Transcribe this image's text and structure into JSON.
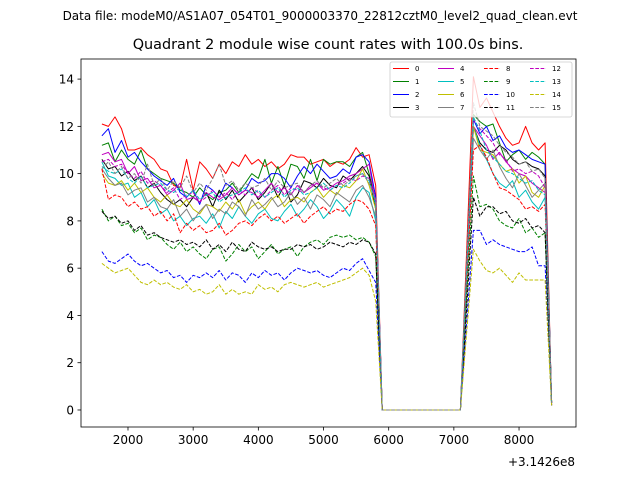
{
  "chart_data": {
    "type": "line",
    "suptitle": "Data file: modeM0/AS1A07_054T01_9000003370_22812cztM0_level2_quad_clean.evt",
    "title": "Quadrant 2 module wise count rates with 100.0s bins.",
    "xlabel": "",
    "ylabel": "",
    "x_offset_text": "+3.1426e8",
    "xlim": [
      1279,
      8874
    ],
    "ylim": [
      -0.72,
      14.85
    ],
    "xticks": [
      2000,
      3000,
      4000,
      5000,
      6000,
      7000,
      8000
    ],
    "xtick_labels": [
      "2000",
      "3000",
      "4000",
      "5000",
      "6000",
      "7000",
      "8000"
    ],
    "yticks": [
      0,
      2,
      4,
      6,
      8,
      10,
      12,
      14
    ],
    "ytick_labels": [
      "0",
      "2",
      "4",
      "6",
      "8",
      "10",
      "12",
      "14"
    ],
    "grid": false,
    "legend_position": "top-right",
    "bin_width": 100,
    "x_segments": {
      "pre_start": 1600,
      "drop_x": 5800,
      "zero_start": 5900,
      "zero_end": 7100,
      "rise_x": 7200,
      "post_start": 7300,
      "end_x": 8500
    },
    "series": [
      {
        "name": "0",
        "color": "#ff0000",
        "dashed": false,
        "pre": [
          12.1,
          12.0,
          12.4,
          11.9,
          11.0,
          11.0,
          11.1,
          10.8,
          10.6,
          10.2,
          10.1,
          9.5,
          9.4,
          10.6,
          9.3,
          10.5,
          10.2,
          9.8,
          10.4,
          10.0,
          10.5,
          10.3,
          10.8,
          10.4,
          10.6,
          10.3,
          10.5,
          10.2,
          10.4,
          10.8,
          10.7,
          10.7,
          10.4,
          10.5,
          10.6,
          10.3,
          10.5,
          10.4,
          10.6,
          11.1,
          10.7,
          10.8
        ],
        "drop": 9.5,
        "rise": 7.0,
        "post": [
          14.1,
          12.8,
          13.2,
          12.6,
          12.0,
          11.5,
          11.2,
          11.3,
          12.0,
          11.3,
          11.0,
          11.3
        ],
        "end": 0.2
      },
      {
        "name": "1",
        "color": "#008000",
        "dashed": false,
        "pre": [
          11.2,
          11.3,
          10.5,
          11.0,
          10.6,
          10.4,
          11.0,
          10.2,
          10.0,
          9.8,
          9.7,
          9.6,
          9.3,
          9.2,
          9.0,
          9.4,
          9.1,
          8.9,
          9.2,
          9.3,
          9.6,
          9.2,
          9.6,
          10.0,
          9.8,
          10.6,
          9.6,
          10.3,
          9.5,
          10.4,
          10.3,
          9.8,
          10.6,
          9.7,
          10.6,
          10.4,
          10.5,
          10.5,
          10.3,
          10.7,
          10.9,
          10.0
        ],
        "drop": 8.8,
        "rise": 6.3,
        "post": [
          12.5,
          12.2,
          12.0,
          12.1,
          11.3,
          10.5,
          10.8,
          11.0,
          10.6,
          10.9,
          10.7,
          10.4
        ],
        "end": 0.3
      },
      {
        "name": "2",
        "color": "#0000ff",
        "dashed": false,
        "pre": [
          11.6,
          11.9,
          10.9,
          11.4,
          10.7,
          10.9,
          10.5,
          10.2,
          9.9,
          9.7,
          9.5,
          9.8,
          9.2,
          9.0,
          9.3,
          8.7,
          9.5,
          9.3,
          9.0,
          9.6,
          9.4,
          9.1,
          9.3,
          9.8,
          9.6,
          9.7,
          10.0,
          10.0,
          9.8,
          9.4,
          9.9,
          10.3,
          10.0,
          10.4,
          10.1,
          9.8,
          9.9,
          10.2,
          10.0,
          10.7,
          10.8,
          10.5
        ],
        "drop": 9.0,
        "rise": 6.2,
        "post": [
          12.3,
          11.7,
          12.0,
          11.4,
          11.6,
          11.1,
          10.9,
          11.0,
          10.8,
          10.6,
          10.5,
          10.4
        ],
        "end": 0.3
      },
      {
        "name": "3",
        "color": "#000000",
        "dashed": false,
        "pre": [
          10.6,
          10.2,
          10.3,
          9.9,
          10.1,
          9.7,
          9.9,
          9.4,
          9.6,
          9.2,
          8.9,
          8.7,
          8.9,
          8.6,
          9.0,
          8.8,
          9.2,
          8.6,
          9.3,
          8.9,
          9.3,
          8.8,
          9.1,
          9.4,
          8.9,
          9.2,
          9.6,
          9.0,
          9.5,
          8.8,
          9.1,
          9.7,
          9.6,
          9.4,
          9.8,
          9.5,
          9.4,
          9.9,
          9.7,
          10.0,
          10.3,
          9.9
        ],
        "drop": 8.5,
        "rise": 6.0,
        "post": [
          12.0,
          11.3,
          11.0,
          10.9,
          11.2,
          11.0,
          10.6,
          10.4,
          10.5,
          10.3,
          10.2,
          9.9
        ],
        "end": 0.3
      },
      {
        "name": "4",
        "color": "#bf00bf",
        "dashed": false,
        "pre": [
          10.8,
          10.9,
          10.5,
          10.6,
          10.0,
          10.3,
          9.7,
          9.8,
          9.4,
          9.5,
          9.1,
          9.3,
          9.6,
          8.9,
          9.0,
          8.8,
          9.2,
          9.0,
          8.9,
          9.1,
          9.4,
          9.1,
          9.3,
          9.2,
          9.0,
          9.3,
          9.6,
          9.2,
          9.4,
          9.1,
          9.5,
          9.2,
          9.4,
          9.6,
          9.3,
          9.4,
          9.6,
          9.7,
          9.9,
          10.0,
          10.2,
          10.4
        ],
        "drop": 8.7,
        "rise": 6.0,
        "post": [
          12.0,
          11.6,
          11.2,
          10.6,
          10.9,
          10.5,
          10.2,
          10.0,
          9.9,
          9.6,
          9.4,
          9.2
        ],
        "end": 0.3
      },
      {
        "name": "5",
        "color": "#00bfbf",
        "dashed": false,
        "pre": [
          10.5,
          9.9,
          9.8,
          9.5,
          9.6,
          9.0,
          9.2,
          8.6,
          8.9,
          8.3,
          8.5,
          8.0,
          8.2,
          7.8,
          8.1,
          8.2,
          7.9,
          8.3,
          7.7,
          8.4,
          8.1,
          8.6,
          8.2,
          7.9,
          8.3,
          8.5,
          8.1,
          8.0,
          8.4,
          8.7,
          8.2,
          8.5,
          8.9,
          8.6,
          8.1,
          8.4,
          8.9,
          8.6,
          8.2,
          9.0,
          9.4,
          9.2
        ],
        "drop": 8.0,
        "rise": 6.0,
        "post": [
          12.0,
          11.2,
          10.6,
          10.0,
          9.6,
          9.4,
          9.7,
          9.0,
          9.3,
          8.8,
          8.5,
          9.0
        ],
        "end": 0.3
      },
      {
        "name": "6",
        "color": "#bfbf00",
        "dashed": false,
        "pre": [
          10.0,
          9.6,
          9.5,
          9.7,
          9.3,
          9.6,
          9.2,
          9.4,
          9.0,
          8.8,
          9.1,
          8.7,
          8.6,
          8.9,
          8.5,
          8.3,
          8.7,
          8.6,
          8.4,
          8.8,
          8.5,
          8.9,
          8.3,
          8.6,
          8.8,
          8.5,
          8.9,
          9.1,
          8.6,
          8.9,
          9.0,
          8.8,
          9.2,
          9.4,
          9.0,
          9.3,
          9.1,
          9.5,
          9.4,
          9.7,
          10.2,
          9.5
        ],
        "drop": 8.5,
        "rise": 6.0,
        "post": [
          12.0,
          11.0,
          10.9,
          10.8,
          10.4,
          10.1,
          10.2,
          9.6,
          9.9,
          9.2,
          9.0,
          9.5
        ],
        "end": 0.3
      },
      {
        "name": "7",
        "color": "#808080",
        "dashed": false,
        "pre": [
          10.2,
          9.8,
          9.5,
          9.6,
          9.1,
          9.3,
          9.4,
          8.8,
          9.0,
          8.6,
          8.5,
          8.9,
          8.2,
          8.5,
          8.0,
          8.4,
          8.7,
          8.1,
          8.5,
          8.3,
          8.8,
          8.6,
          8.2,
          8.9,
          8.5,
          8.7,
          9.0,
          8.6,
          8.8,
          9.2,
          8.7,
          9.0,
          8.5,
          9.1,
          8.9,
          8.6,
          9.2,
          9.0,
          8.8,
          9.3,
          9.5,
          9.0
        ],
        "drop": 8.2,
        "rise": 5.7,
        "post": [
          11.5,
          11.0,
          10.6,
          11.0,
          10.3,
          9.8,
          9.4,
          10.0,
          9.5,
          9.0,
          9.3,
          9.6
        ],
        "end": 0.3
      },
      {
        "name": "8",
        "color": "#ff0000",
        "dashed": true,
        "pre": [
          10.2,
          8.9,
          9.1,
          9.0,
          8.6,
          8.8,
          8.5,
          8.6,
          8.2,
          8.4,
          8.0,
          8.3,
          7.5,
          7.9,
          7.6,
          7.8,
          7.5,
          7.6,
          7.9,
          7.4,
          7.6,
          7.9,
          8.0,
          7.8,
          8.1,
          8.3,
          8.0,
          8.2,
          7.9,
          8.1,
          8.3,
          7.9,
          8.2,
          8.4,
          8.6,
          8.3,
          8.5,
          8.4,
          8.7,
          8.9,
          8.8,
          8.5
        ],
        "drop": 7.8,
        "rise": 5.5,
        "post": [
          11.0,
          11.2,
          10.7,
          10.0,
          9.4,
          9.3,
          9.1,
          8.9,
          8.5,
          8.6,
          8.4,
          8.7
        ],
        "end": 0.3
      },
      {
        "name": "9",
        "color": "#008000",
        "dashed": true,
        "pre": [
          8.5,
          8.0,
          8.2,
          7.8,
          7.9,
          7.5,
          7.7,
          7.2,
          7.4,
          7.3,
          7.0,
          6.8,
          7.1,
          6.7,
          6.9,
          6.6,
          6.4,
          6.8,
          6.9,
          6.3,
          6.6,
          7.0,
          6.7,
          6.9,
          6.4,
          6.7,
          7.0,
          6.6,
          6.8,
          6.9,
          6.5,
          6.9,
          7.1,
          7.2,
          7.0,
          7.3,
          7.4,
          7.3,
          7.4,
          7.2,
          7.3,
          7.1
        ],
        "drop": 6.5,
        "rise": 5.0,
        "post": [
          9.9,
          8.6,
          8.7,
          8.5,
          8.0,
          7.8,
          7.7,
          8.1,
          7.5,
          7.7,
          7.3,
          7.5
        ],
        "end": 0.2
      },
      {
        "name": "10",
        "color": "#0000ff",
        "dashed": true,
        "pre": [
          6.7,
          6.3,
          6.2,
          6.4,
          6.6,
          6.3,
          6.1,
          6.2,
          6.0,
          5.8,
          5.9,
          5.6,
          5.7,
          5.4,
          5.7,
          5.6,
          5.8,
          5.6,
          5.9,
          5.5,
          5.8,
          5.7,
          5.4,
          5.8,
          5.6,
          5.9,
          5.7,
          5.8,
          5.5,
          5.8,
          6.0,
          5.9,
          5.8,
          5.9,
          5.7,
          5.6,
          5.8,
          6.0,
          5.9,
          6.2,
          6.4,
          5.9
        ],
        "drop": 5.4,
        "rise": 3.8,
        "post": [
          7.6,
          7.6,
          7.0,
          7.2,
          7.0,
          6.9,
          6.8,
          6.7,
          6.7,
          6.9,
          6.1,
          6.1
        ],
        "end": 0.2
      },
      {
        "name": "11",
        "color": "#000000",
        "dashed": true,
        "pre": [
          8.4,
          8.1,
          8.2,
          7.9,
          8.0,
          7.6,
          7.8,
          7.4,
          7.5,
          7.3,
          7.2,
          7.1,
          7.2,
          7.0,
          7.1,
          6.9,
          7.2,
          6.8,
          7.0,
          6.7,
          7.1,
          6.8,
          6.7,
          7.1,
          6.9,
          6.8,
          6.9,
          6.7,
          6.8,
          6.8,
          7.0,
          6.9,
          7.0,
          6.8,
          6.9,
          7.1,
          7.0,
          6.9,
          7.1,
          7.0,
          7.2,
          7.1
        ],
        "drop": 6.6,
        "rise": 4.5,
        "post": [
          9.0,
          8.2,
          8.6,
          8.6,
          8.3,
          8.4,
          8.0,
          7.9,
          8.1,
          7.7,
          7.8,
          7.5
        ],
        "end": 0.2
      },
      {
        "name": "12",
        "color": "#bf00bf",
        "dashed": true,
        "pre": [
          10.5,
          10.6,
          10.3,
          10.4,
          10.0,
          9.8,
          10.1,
          9.6,
          9.7,
          9.5,
          9.2,
          9.4,
          8.9,
          9.1,
          9.2,
          8.8,
          9.0,
          9.3,
          9.0,
          9.2,
          8.9,
          9.3,
          9.1,
          9.4,
          9.2,
          9.0,
          9.3,
          9.5,
          9.1,
          9.4,
          9.3,
          9.2,
          9.5,
          9.6,
          9.4,
          9.3,
          9.5,
          9.6,
          9.8,
          9.7,
          9.9,
          9.8
        ],
        "drop": 8.8,
        "rise": 6.1,
        "post": [
          12.3,
          11.9,
          11.6,
          11.3,
          10.8,
          10.6,
          10.1,
          10.2,
          10.0,
          10.1,
          9.9,
          9.4
        ],
        "end": 0.3
      },
      {
        "name": "13",
        "color": "#00bfbf",
        "dashed": true,
        "pre": [
          10.3,
          10.1,
          10.0,
          10.2,
          9.8,
          9.6,
          9.9,
          9.4,
          9.5,
          9.6,
          9.3,
          9.2,
          9.4,
          9.0,
          9.3,
          8.9,
          9.1,
          9.2,
          8.8,
          9.0,
          9.1,
          9.2,
          9.4,
          9.1,
          9.3,
          9.0,
          9.2,
          9.4,
          9.0,
          9.3,
          9.4,
          9.1,
          9.2,
          9.4,
          9.6,
          9.3,
          9.5,
          9.4,
          9.6,
          9.9,
          10.0,
          9.7
        ],
        "drop": 8.7,
        "rise": 6.0,
        "post": [
          12.4,
          11.8,
          11.0,
          10.7,
          10.4,
          10.1,
          10.0,
          9.8,
          9.6,
          9.7,
          9.3,
          9.1
        ],
        "end": 0.3
      },
      {
        "name": "14",
        "color": "#bfbf00",
        "dashed": true,
        "pre": [
          6.2,
          6.0,
          5.8,
          5.9,
          6.0,
          5.7,
          5.4,
          5.3,
          5.5,
          5.3,
          5.4,
          5.2,
          5.1,
          5.3,
          5.0,
          5.1,
          4.9,
          5.0,
          5.3,
          4.9,
          5.1,
          4.9,
          5.0,
          4.9,
          5.3,
          5.1,
          5.2,
          5.0,
          5.3,
          5.4,
          5.3,
          5.2,
          5.3,
          5.4,
          5.2,
          5.3,
          5.4,
          5.5,
          5.6,
          5.8,
          6.0,
          5.7
        ],
        "drop": 4.6,
        "rise": 3.4,
        "post": [
          6.8,
          6.3,
          5.9,
          5.8,
          6.0,
          5.7,
          5.4,
          5.8,
          5.5,
          5.5,
          5.5,
          5.5
        ],
        "end": 0.2
      },
      {
        "name": "15",
        "color": "#808080",
        "dashed": true,
        "pre": [
          10.2,
          10.5,
          10.0,
          10.3,
          9.8,
          10.0,
          9.6,
          10.4,
          9.5,
          9.8,
          9.3,
          9.7,
          9.4,
          9.9,
          9.2,
          9.6,
          9.3,
          9.8,
          10.4,
          9.5,
          9.7,
          9.3,
          9.6,
          9.4,
          9.5,
          9.8,
          9.3,
          9.7,
          9.4,
          9.5,
          9.6,
          9.2,
          9.5,
          9.7,
          9.4,
          9.6,
          9.8,
          9.5,
          9.7,
          9.9,
          10.0,
          9.6
        ],
        "drop": 8.9,
        "rise": 6.5,
        "post": [
          13.0,
          12.0,
          11.8,
          11.6,
          11.2,
          10.9,
          10.7,
          10.4,
          10.5,
          10.1,
          10.2,
          9.8
        ],
        "end": 0.3
      }
    ]
  }
}
